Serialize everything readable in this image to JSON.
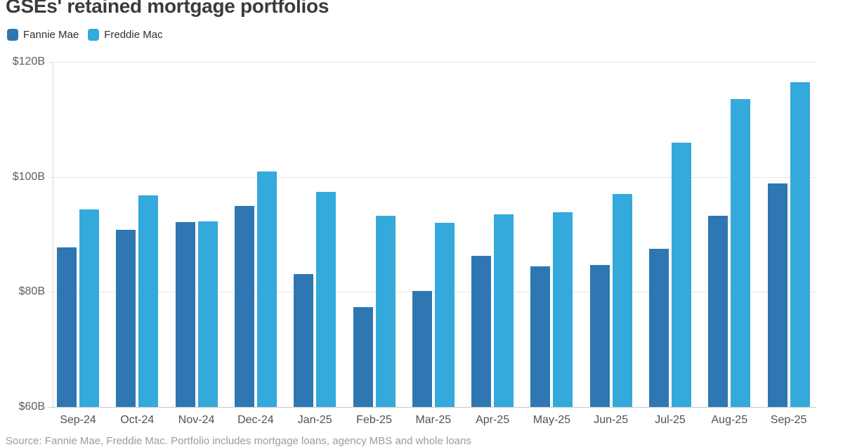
{
  "header": {
    "title": "GSEs' retained mortgage portfolios"
  },
  "legend": {
    "items": [
      {
        "label": "Fannie Mae",
        "color": "#2e77b2"
      },
      {
        "label": "Freddie Mac",
        "color": "#34a9dc"
      }
    ]
  },
  "footer": {
    "source": "Source: Fannie Mae, Freddie Mac. Portfolio includes mortgage loans, agency MBS and whole loans"
  },
  "chart_data": {
    "type": "bar",
    "title": "GSEs' retained mortgage portfolios",
    "categories": [
      "Sep-24",
      "Oct-24",
      "Nov-24",
      "Dec-24",
      "Jan-25",
      "Feb-25",
      "Mar-25",
      "Apr-25",
      "May-25",
      "Jun-25",
      "Jul-25",
      "Aug-25",
      "Sep-25"
    ],
    "series": [
      {
        "name": "Fannie Mae",
        "color": "#2e77b2",
        "values": [
          87.8,
          90.8,
          92.2,
          94.9,
          83.1,
          77.4,
          80.2,
          86.3,
          84.4,
          84.7,
          87.5,
          93.3,
          98.9
        ]
      },
      {
        "name": "Freddie Mac",
        "color": "#34a9dc",
        "values": [
          94.4,
          96.8,
          92.3,
          101.0,
          97.4,
          93.2,
          92.0,
          93.5,
          93.9,
          97.0,
          105.9,
          113.5,
          116.5
        ]
      }
    ],
    "xlabel": "",
    "ylabel": "",
    "ylim": [
      60,
      120
    ],
    "y_ticks": [
      {
        "value": 120,
        "label": "$120B"
      },
      {
        "value": 100,
        "label": "$100B"
      },
      {
        "value": 80,
        "label": "$80B"
      },
      {
        "value": 60,
        "label": "$60B"
      }
    ],
    "grid": true,
    "legend_position": "top-left"
  }
}
